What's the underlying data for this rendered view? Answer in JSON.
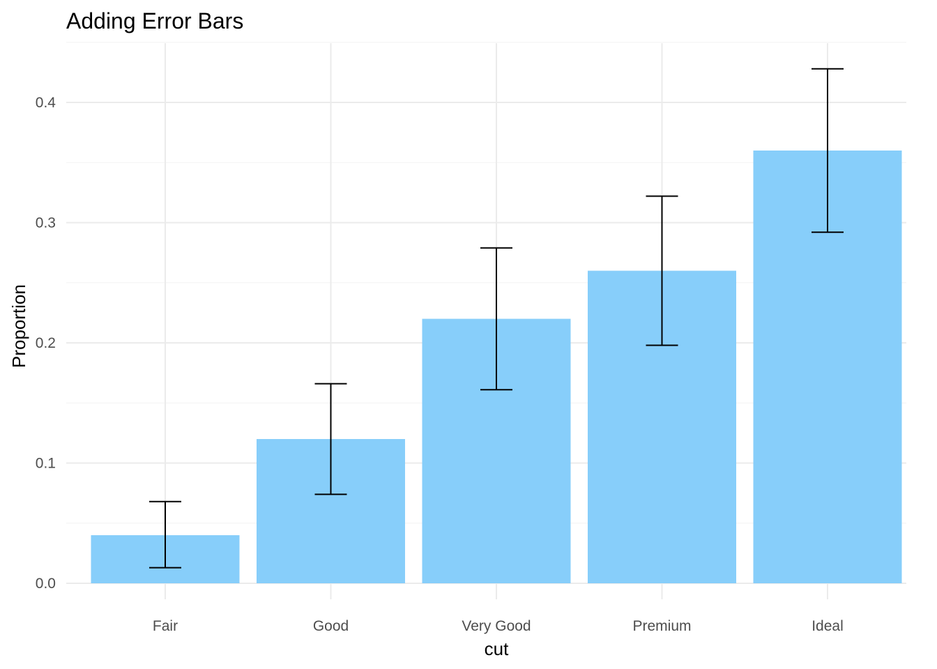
{
  "chart_data": {
    "type": "bar",
    "title": "Adding Error Bars",
    "xlabel": "cut",
    "ylabel": "Proportion",
    "categories": [
      "Fair",
      "Good",
      "Very Good",
      "Premium",
      "Ideal"
    ],
    "values": [
      0.04,
      0.12,
      0.22,
      0.26,
      0.36
    ],
    "error_low": [
      0.013,
      0.074,
      0.161,
      0.198,
      0.292
    ],
    "error_high": [
      0.068,
      0.166,
      0.279,
      0.322,
      0.428
    ],
    "ylim": [
      0.0,
      0.45
    ],
    "yticks": [
      "0.0",
      "0.1",
      "0.2",
      "0.3",
      "0.4"
    ],
    "ytick_values": [
      0.0,
      0.1,
      0.2,
      0.3,
      0.4
    ],
    "grid": true,
    "bar_color": "#87CEFA",
    "errorbar_color": "#000000"
  }
}
